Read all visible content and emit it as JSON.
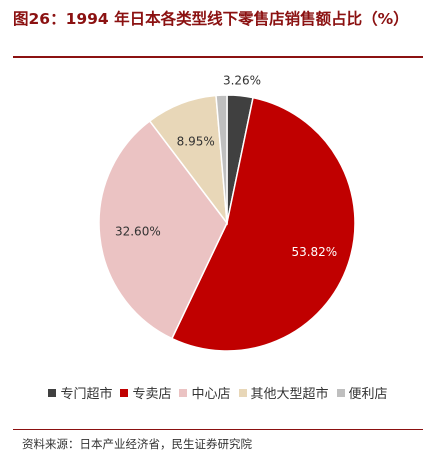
{
  "title": "图26：1994 年日本各类型线下零售店销售额占比（%）",
  "source": "资料来源：日本产业经济省，民生证券研究院",
  "chart_data": {
    "type": "pie",
    "title": "图26：1994 年日本各类型线下零售店销售额占比（%）",
    "slices": [
      {
        "label": "专门超市",
        "value": 3.26,
        "display": "3.26%",
        "color": "#404040"
      },
      {
        "label": "专卖店",
        "value": 53.82,
        "display": "53.82%",
        "color": "#c00000"
      },
      {
        "label": "中心店",
        "value": 32.6,
        "display": "32.60%",
        "color": "#ebc3c3"
      },
      {
        "label": "其他大型超市",
        "value": 8.95,
        "display": "8.95%",
        "color": "#e8d7b8"
      },
      {
        "label": "便利店",
        "value": 1.37,
        "display": "",
        "color": "#bfbfbf"
      }
    ],
    "legend_position": "bottom"
  }
}
